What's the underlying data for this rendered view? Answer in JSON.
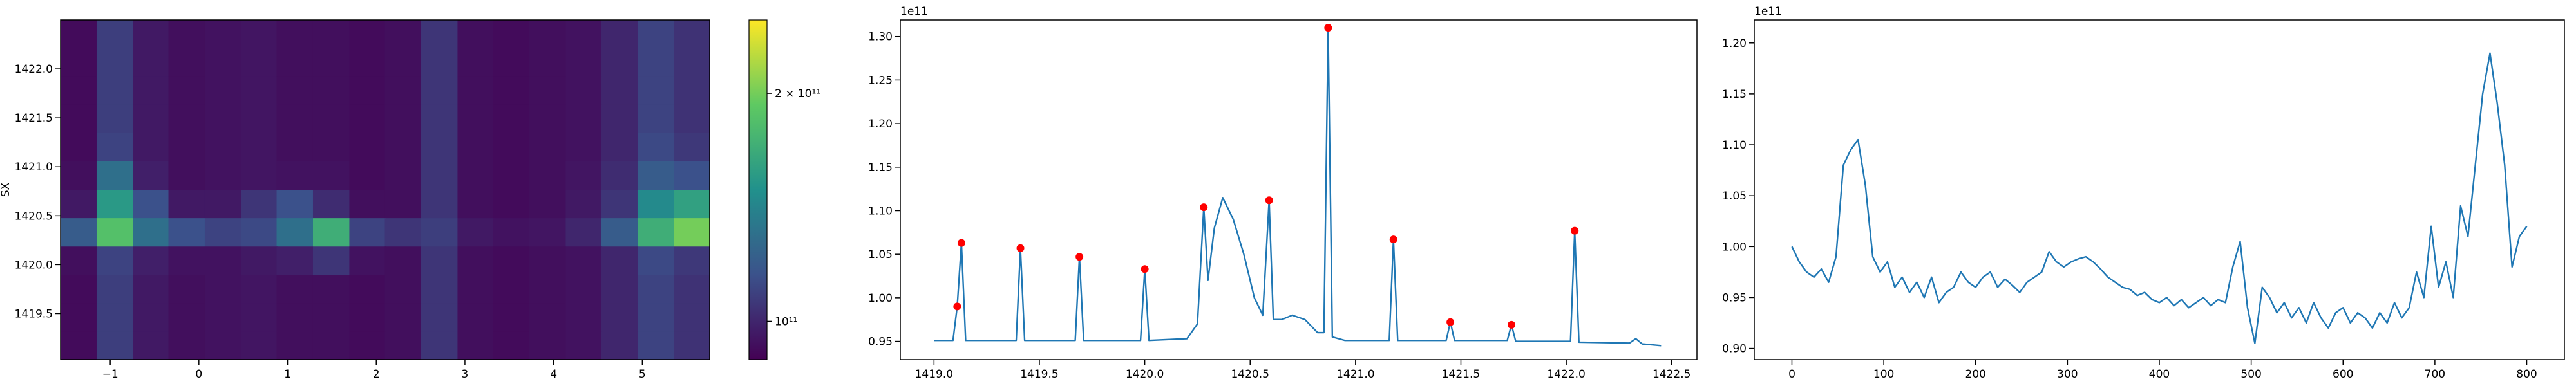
{
  "chart_data": [
    {
      "type": "heatmap",
      "ylabel": "SX",
      "x": [
        -1.36,
        -0.95,
        -0.54,
        -0.14,
        0.27,
        0.68,
        1.08,
        1.49,
        1.9,
        2.3,
        2.71,
        3.12,
        3.52,
        3.93,
        4.34,
        4.74,
        5.15,
        5.56
      ],
      "y": [
        1422.36,
        1422.07,
        1421.78,
        1421.49,
        1421.2,
        1420.91,
        1420.62,
        1420.33,
        1420.04,
        1419.75,
        1419.46,
        1419.17
      ],
      "z": [
        [
          92000000000.0,
          108000000000.0,
          96000000000.0,
          93000000000.0,
          94000000000.0,
          95000000000.0,
          93000000000.0,
          93000000000.0,
          92000000000.0,
          93000000000.0,
          105000000000.0,
          93000000000.0,
          92000000000.0,
          93000000000.0,
          94000000000.0,
          100000000000.0,
          110000000000.0,
          104000000000.0
        ],
        [
          92000000000.0,
          108000000000.0,
          96000000000.0,
          93000000000.0,
          94000000000.0,
          95000000000.0,
          93000000000.0,
          93000000000.0,
          92000000000.0,
          93000000000.0,
          105000000000.0,
          93000000000.0,
          92000000000.0,
          93000000000.0,
          94000000000.0,
          100000000000.0,
          110000000000.0,
          104000000000.0
        ],
        [
          92000000000.0,
          108000000000.0,
          96000000000.0,
          93000000000.0,
          94000000000.0,
          95000000000.0,
          93000000000.0,
          93000000000.0,
          92000000000.0,
          93000000000.0,
          105000000000.0,
          93000000000.0,
          92000000000.0,
          93000000000.0,
          94000000000.0,
          100000000000.0,
          110000000000.0,
          104000000000.0
        ],
        [
          92000000000.0,
          108000000000.0,
          96000000000.0,
          93000000000.0,
          94000000000.0,
          95000000000.0,
          93000000000.0,
          93000000000.0,
          92000000000.0,
          93000000000.0,
          105000000000.0,
          93000000000.0,
          92000000000.0,
          93000000000.0,
          94000000000.0,
          100000000000.0,
          110000000000.0,
          104000000000.0
        ],
        [
          92000000000.0,
          110000000000.0,
          96000000000.0,
          93000000000.0,
          94000000000.0,
          95000000000.0,
          93000000000.0,
          93000000000.0,
          92000000000.0,
          93000000000.0,
          105000000000.0,
          93000000000.0,
          92000000000.0,
          93000000000.0,
          94000000000.0,
          100000000000.0,
          112000000000.0,
          106000000000.0
        ],
        [
          93000000000.0,
          130000000000.0,
          98000000000.0,
          93000000000.0,
          94000000000.0,
          95000000000.0,
          94000000000.0,
          94000000000.0,
          92000000000.0,
          93000000000.0,
          105000000000.0,
          93000000000.0,
          92000000000.0,
          93000000000.0,
          95000000000.0,
          102000000000.0,
          120000000000.0,
          115000000000.0
        ],
        [
          96000000000.0,
          155000000000.0,
          115000000000.0,
          96000000000.0,
          96000000000.0,
          105000000000.0,
          115000000000.0,
          102000000000.0,
          93000000000.0,
          93000000000.0,
          105000000000.0,
          93000000000.0,
          92000000000.0,
          93000000000.0,
          96000000000.0,
          105000000000.0,
          145000000000.0,
          160000000000.0
        ],
        [
          120000000000.0,
          185000000000.0,
          130000000000.0,
          115000000000.0,
          110000000000.0,
          112000000000.0,
          130000000000.0,
          170000000000.0,
          110000000000.0,
          105000000000.0,
          108000000000.0,
          96000000000.0,
          94000000000.0,
          95000000000.0,
          100000000000.0,
          120000000000.0,
          170000000000.0,
          200000000000.0
        ],
        [
          93000000000.0,
          110000000000.0,
          98000000000.0,
          94000000000.0,
          94000000000.0,
          96000000000.0,
          98000000000.0,
          105000000000.0,
          94000000000.0,
          93000000000.0,
          105000000000.0,
          93000000000.0,
          92000000000.0,
          93000000000.0,
          94000000000.0,
          100000000000.0,
          112000000000.0,
          106000000000.0
        ],
        [
          92000000000.0,
          108000000000.0,
          96000000000.0,
          93000000000.0,
          94000000000.0,
          95000000000.0,
          93000000000.0,
          93000000000.0,
          92000000000.0,
          93000000000.0,
          105000000000.0,
          93000000000.0,
          92000000000.0,
          93000000000.0,
          94000000000.0,
          100000000000.0,
          110000000000.0,
          104000000000.0
        ],
        [
          92000000000.0,
          108000000000.0,
          96000000000.0,
          93000000000.0,
          94000000000.0,
          95000000000.0,
          93000000000.0,
          93000000000.0,
          92000000000.0,
          93000000000.0,
          105000000000.0,
          93000000000.0,
          92000000000.0,
          93000000000.0,
          94000000000.0,
          100000000000.0,
          110000000000.0,
          104000000000.0
        ],
        [
          92000000000.0,
          108000000000.0,
          96000000000.0,
          93000000000.0,
          94000000000.0,
          95000000000.0,
          93000000000.0,
          93000000000.0,
          92000000000.0,
          93000000000.0,
          105000000000.0,
          93000000000.0,
          92000000000.0,
          93000000000.0,
          94000000000.0,
          100000000000.0,
          110000000000.0,
          104000000000.0
        ]
      ],
      "xlim": [
        -1.56,
        5.76
      ],
      "ylim": [
        1419.03,
        1422.5
      ],
      "xticks": [
        {
          "value": -1,
          "label": "−1"
        },
        0,
        1,
        2,
        3,
        4,
        5
      ],
      "yticks": [
        1419.5,
        {
          "value": 1420.0,
          "label": "1420.0"
        },
        1420.5,
        {
          "value": 1421.0,
          "label": "1421.0"
        },
        1421.5,
        {
          "value": 1422.0,
          "label": "1422.0"
        }
      ],
      "colormap": "viridis",
      "colorbar": {
        "scale": "log",
        "lim": [
          89000000000.0,
          250000000000.0
        ],
        "ticks": [
          {
            "value": 100000000000.0,
            "label": "10¹¹"
          },
          {
            "value": 200000000000.0,
            "label": "2 × 10¹¹"
          }
        ]
      }
    },
    {
      "type": "line",
      "y_offset_label": "1e11",
      "xlim": [
        1418.84,
        1422.62
      ],
      "ylim": [
        0.929,
        1.319
      ],
      "xticks": [
        {
          "value": 1419.0,
          "label": "1419.0"
        },
        1419.5,
        {
          "value": 1420.0,
          "label": "1420.0"
        },
        1420.5,
        {
          "value": 1421.0,
          "label": "1421.0"
        },
        1421.5,
        {
          "value": 1422.0,
          "label": "1422.0"
        },
        1422.5
      ],
      "yticks": [
        0.95,
        {
          "value": 1.0,
          "label": "1.00"
        },
        1.05,
        {
          "value": 1.1,
          "label": "1.10"
        },
        1.15,
        {
          "value": 1.2,
          "label": "1.20"
        },
        1.25,
        {
          "value": 1.3,
          "label": "1.30"
        }
      ],
      "series": [
        {
          "color": "#1f77b4",
          "line": true,
          "marker": false,
          "x": [
            1419.0,
            1419.09,
            1419.11,
            1419.13,
            1419.15,
            1419.39,
            1419.41,
            1419.43,
            1419.67,
            1419.69,
            1419.71,
            1419.98,
            1420.0,
            1420.02,
            1420.2,
            1420.25,
            1420.28,
            1420.3,
            1420.33,
            1420.37,
            1420.42,
            1420.47,
            1420.52,
            1420.56,
            1420.59,
            1420.61,
            1420.65,
            1420.7,
            1420.76,
            1420.82,
            1420.85,
            1420.87,
            1420.89,
            1420.95,
            1421.16,
            1421.18,
            1421.2,
            1421.43,
            1421.45,
            1421.47,
            1421.72,
            1421.74,
            1421.76,
            1422.02,
            1422.04,
            1422.06,
            1422.3,
            1422.33,
            1422.36,
            1422.45
          ],
          "values": [
            0.951,
            0.951,
            0.99,
            1.063,
            0.951,
            0.951,
            1.057,
            0.951,
            0.951,
            1.047,
            0.951,
            0.951,
            1.033,
            0.951,
            0.953,
            0.97,
            1.104,
            1.02,
            1.08,
            1.115,
            1.09,
            1.05,
            1.0,
            0.98,
            1.112,
            0.975,
            0.975,
            0.98,
            0.975,
            0.96,
            0.96,
            1.31,
            0.955,
            0.951,
            0.951,
            1.067,
            0.951,
            0.951,
            0.972,
            0.951,
            0.951,
            0.969,
            0.95,
            0.95,
            1.077,
            0.949,
            0.948,
            0.953,
            0.947,
            0.945
          ]
        },
        {
          "color": "#ff0000",
          "line": false,
          "marker": true,
          "x": [
            1419.11,
            1419.13,
            1419.41,
            1419.69,
            1420.0,
            1420.28,
            1420.59,
            1420.87,
            1421.18,
            1421.45,
            1421.74,
            1422.04
          ],
          "values": [
            0.99,
            1.063,
            1.057,
            1.047,
            1.033,
            1.104,
            1.112,
            1.31,
            1.067,
            0.972,
            0.969,
            1.077
          ]
        }
      ]
    },
    {
      "type": "line",
      "y_offset_label": "1e11",
      "xlim": [
        -41,
        841
      ],
      "ylim": [
        0.889,
        1.2226
      ],
      "xticks": [
        0,
        100,
        200,
        300,
        400,
        500,
        600,
        700,
        800
      ],
      "yticks": [
        {
          "value": 0.9,
          "label": "0.90"
        },
        0.95,
        {
          "value": 1.0,
          "label": "1.00"
        },
        1.05,
        {
          "value": 1.1,
          "label": "1.10"
        },
        1.15,
        {
          "value": 1.2,
          "label": "1.20"
        }
      ],
      "series": [
        {
          "color": "#1f77b4",
          "line": true,
          "marker": false,
          "x": [
            0,
            8,
            16,
            24,
            32,
            40,
            48,
            56,
            64,
            72,
            80,
            88,
            96,
            104,
            112,
            120,
            128,
            136,
            144,
            152,
            160,
            168,
            176,
            184,
            192,
            200,
            208,
            216,
            224,
            232,
            240,
            248,
            256,
            264,
            272,
            280,
            288,
            296,
            304,
            312,
            320,
            328,
            336,
            344,
            352,
            360,
            368,
            376,
            384,
            392,
            400,
            408,
            416,
            424,
            432,
            440,
            448,
            456,
            464,
            472,
            480,
            488,
            496,
            504,
            512,
            520,
            528,
            536,
            544,
            552,
            560,
            568,
            576,
            584,
            592,
            600,
            608,
            616,
            624,
            632,
            640,
            648,
            656,
            664,
            672,
            680,
            688,
            696,
            704,
            712,
            720,
            728,
            736,
            744,
            752,
            760,
            768,
            776,
            784,
            792,
            800
          ],
          "values": [
            1.0,
            0.985,
            0.975,
            0.97,
            0.978,
            0.965,
            0.99,
            1.08,
            1.095,
            1.105,
            1.06,
            0.99,
            0.975,
            0.985,
            0.96,
            0.97,
            0.955,
            0.965,
            0.95,
            0.97,
            0.945,
            0.955,
            0.96,
            0.975,
            0.965,
            0.96,
            0.97,
            0.975,
            0.96,
            0.968,
            0.962,
            0.955,
            0.965,
            0.97,
            0.975,
            0.995,
            0.985,
            0.98,
            0.985,
            0.988,
            0.99,
            0.985,
            0.978,
            0.97,
            0.965,
            0.96,
            0.958,
            0.952,
            0.955,
            0.948,
            0.945,
            0.95,
            0.942,
            0.948,
            0.94,
            0.945,
            0.95,
            0.942,
            0.948,
            0.945,
            0.98,
            1.005,
            0.94,
            0.905,
            0.96,
            0.95,
            0.935,
            0.945,
            0.93,
            0.94,
            0.925,
            0.945,
            0.93,
            0.92,
            0.935,
            0.94,
            0.925,
            0.935,
            0.93,
            0.92,
            0.935,
            0.925,
            0.945,
            0.93,
            0.94,
            0.975,
            0.95,
            1.02,
            0.96,
            0.985,
            0.95,
            1.04,
            1.01,
            1.08,
            1.15,
            1.19,
            1.14,
            1.08,
            0.98,
            1.01,
            1.02
          ]
        }
      ]
    }
  ]
}
